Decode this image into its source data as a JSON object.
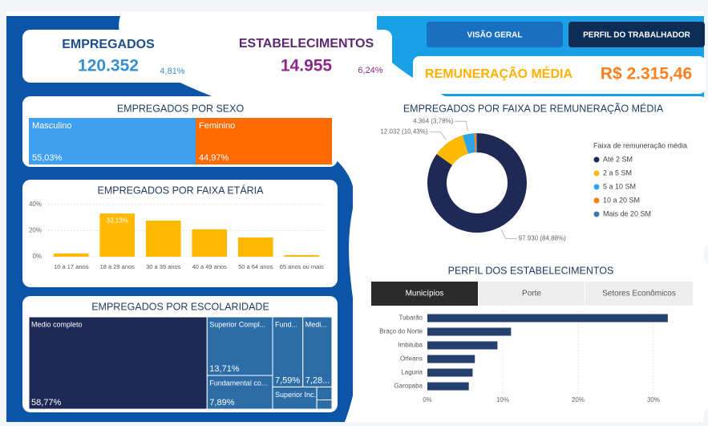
{
  "nav": [
    "VISÃO GERAL",
    "PERFIL DO TRABALHADOR"
  ],
  "kpis": [
    {
      "label": "EMPREGADOS",
      "value": "120.352",
      "change": "4,81%"
    },
    {
      "label": "ESTABELECIMENTOS",
      "value": "14.955",
      "change": "6,24%"
    },
    {
      "label": "REMUNERAÇÃO MÉDIA",
      "value": "R$ 2.315,46"
    }
  ],
  "chart_data": [
    {
      "type": "stacked_bar",
      "title": "EMPREGADOS POR SEXO",
      "series": [
        {
          "name": "Masculino",
          "color": "#3fa0f2",
          "values": [
            55.03
          ],
          "value_labels": [
            "55,03%"
          ]
        },
        {
          "name": "Feminino",
          "color": "#ff6a00",
          "values": [
            44.97
          ],
          "value_labels": [
            "44,97%"
          ]
        }
      ]
    },
    {
      "type": "bar",
      "title": "EMPREGADOS POR FAIXA ETÁRIA",
      "color": "#ffb900",
      "categories": [
        "10 a 17 anos",
        "18 a 29 anos",
        "30 a 39 anos",
        "40 a 49 anos",
        "50 a 64 anos",
        "65 anos ou mais"
      ],
      "values": [
        2.5,
        33.13,
        27.7,
        21,
        14.8,
        1.2
      ],
      "value_labels": [
        null,
        "33,13%",
        null,
        null,
        null,
        null
      ],
      "ylim": [
        0,
        40
      ],
      "yticks": [
        {
          "value": 0,
          "label": "0%"
        },
        {
          "value": 20,
          "label": "20%"
        },
        {
          "value": 40,
          "label": "40%"
        }
      ]
    },
    {
      "type": "pie",
      "title": "EMPREGADOS POR FAIXA DE REMUNERAÇÃO MÉDIA",
      "legend_title": "Faixa de remuneração média",
      "legend": "right",
      "categories": [
        "Até 2 SM",
        "2 a 5 SM",
        "5 a 10 SM",
        "10 a 20 SM",
        "Mais de 20 SM"
      ],
      "values": [
        97930,
        12032,
        4364,
        700,
        350
      ],
      "value_labels": [
        "97.930 (84,88%)",
        "12.032 (10,43%)",
        "4.364 (3,78%)",
        null,
        null
      ],
      "colors": [
        "#1e2a55",
        "#ffb900",
        "#2fa3e8",
        "#ff7f0e",
        "#3a78b5"
      ]
    },
    {
      "type": "treemap",
      "title": "EMPREGADOS POR ESCOLARIDADE",
      "categories": [
        "Medio completo",
        "Superior Compl...",
        "Fund...",
        "Medi...",
        "Fundamental co...",
        "Superior Inc...",
        null,
        null
      ],
      "values": [
        58.77,
        13.71,
        7.59,
        7.28,
        7.89,
        3.5,
        0.7,
        0.5
      ],
      "value_labels": [
        "58,77%",
        "13,71%",
        "7,59%",
        "7,28...",
        "7,89%",
        null,
        null,
        null
      ],
      "colors": [
        "#1e2a55",
        "#2c6da7",
        "#2c6da7",
        "#2c6da7",
        "#2c6da7",
        "#2c6da7",
        "#2c6da7",
        "#2c6da7"
      ]
    },
    {
      "type": "hbar",
      "title": "PERFIL DOS ESTABELECIMENTOS",
      "tabs": [
        "Municípios",
        "Porte",
        "Setores Econômicos"
      ],
      "color": "#23406e",
      "categories": [
        "Tubarão",
        "Braço do Norte",
        "Imbituba",
        "Orleans",
        "Laguna",
        "Garopaba"
      ],
      "values": [
        31.9,
        11.1,
        9.3,
        6.3,
        6,
        5.5
      ],
      "xlim": [
        0,
        35
      ],
      "xticks": [
        {
          "value": 0,
          "label": "0%"
        },
        {
          "value": 10,
          "label": "10%"
        },
        {
          "value": 20,
          "label": "20%"
        },
        {
          "value": 30,
          "label": "30%"
        }
      ],
      "grid": true
    }
  ]
}
